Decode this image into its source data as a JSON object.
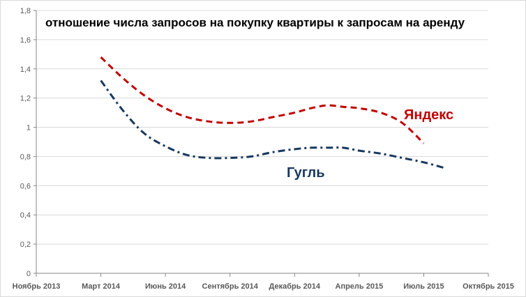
{
  "chart_data": {
    "type": "line",
    "title": "отношение числа запросов на покупку квартиры к запросам на аренду",
    "xlabel": "",
    "ylabel": "",
    "ylim": [
      0,
      1.8
    ],
    "y_ticks": [
      "0",
      "0,2",
      "0,4",
      "0,6",
      "0,8",
      "1",
      "1,2",
      "1,4",
      "1,6",
      "1,8"
    ],
    "x_ticks": [
      "Ноябрь 2013",
      "Март 2014",
      "Июнь 2014",
      "Сентябрь 2014",
      "Декабрь 2014",
      "Апрель 2015",
      "Июль 2015",
      "Октябрь 2015"
    ],
    "x_tick_dates": [
      "2013-11",
      "2014-03",
      "2014-06",
      "2014-09",
      "2014-12",
      "2015-04",
      "2015-07",
      "2015-10"
    ],
    "grid": true,
    "legend": "none",
    "series": [
      {
        "name": "Яндекс",
        "color": "#c00000",
        "style": "dashed",
        "x": [
          "2014-03",
          "2014-04",
          "2014-05",
          "2014-06",
          "2014-07",
          "2014-08",
          "2014-09",
          "2014-10",
          "2014-11",
          "2014-12",
          "2015-01",
          "2015-02",
          "2015-03",
          "2015-04",
          "2015-05",
          "2015-06",
          "2015-07"
        ],
        "values": [
          1.48,
          1.34,
          1.22,
          1.13,
          1.07,
          1.04,
          1.03,
          1.04,
          1.07,
          1.1,
          1.13,
          1.15,
          1.14,
          1.13,
          1.1,
          1.03,
          0.89
        ]
      },
      {
        "name": "Гугль",
        "color": "#17375e",
        "style": "dash-dot",
        "x": [
          "2014-03",
          "2014-04",
          "2014-05",
          "2014-06",
          "2014-07",
          "2014-08",
          "2014-09",
          "2014-10",
          "2014-11",
          "2014-12",
          "2015-01",
          "2015-02",
          "2015-03",
          "2015-04",
          "2015-05",
          "2015-06",
          "2015-07",
          "2015-08"
        ],
        "values": [
          1.32,
          1.12,
          0.96,
          0.87,
          0.81,
          0.79,
          0.79,
          0.8,
          0.83,
          0.85,
          0.86,
          0.86,
          0.86,
          0.84,
          0.82,
          0.79,
          0.76,
          0.72
        ]
      }
    ]
  }
}
